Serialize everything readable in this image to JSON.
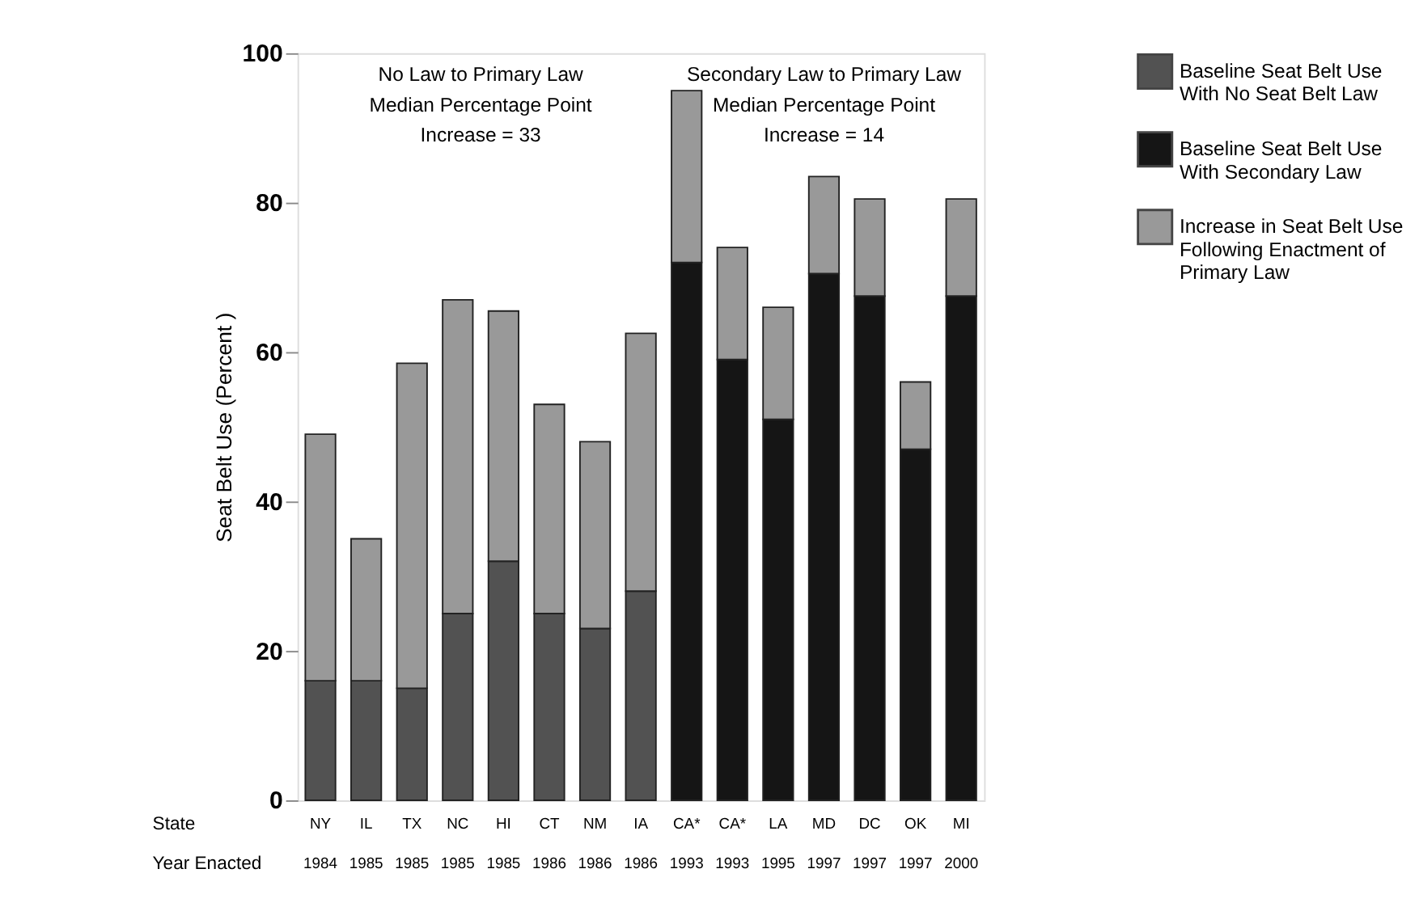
{
  "chart_data": {
    "type": "bar",
    "stacked": true,
    "ylabel": "Seat Belt Use (Percent )",
    "categories": [
      "NY\n1984",
      "IL\n1985",
      "TX\n1985",
      "NC\n1985",
      "HI\n1985",
      "CT\n1986",
      "NM\n1986",
      "IA\n1986",
      "CA*\n1993",
      "CA*\n1993",
      "LA\n1995",
      "MD\n1997",
      "DC\n1997",
      "OK\n1997",
      "MI\n2000"
    ],
    "series": [
      {
        "name": "Baseline Seat Belt Use With No Seat Belt Law",
        "color": "#525252",
        "values": [
          16,
          16,
          15,
          25,
          32,
          25,
          23,
          28,
          null,
          null,
          null,
          null,
          null,
          null,
          null
        ]
      },
      {
        "name": "Baseline Seat Belt Use With Secondary Law",
        "color": "#151515",
        "values": [
          null,
          null,
          null,
          null,
          null,
          null,
          null,
          null,
          72,
          59,
          51,
          70.5,
          67.5,
          47,
          67.5
        ]
      },
      {
        "name": "Increase in Seat Belt Use Following Enactment of Primary Law",
        "color": "#999999",
        "values": [
          33,
          19,
          43.5,
          42,
          33.5,
          28,
          25,
          34.5,
          23,
          15,
          15,
          13,
          13,
          9,
          13
        ]
      }
    ],
    "ylim": [
      0,
      100
    ],
    "yticks": [
      0,
      20,
      40,
      60,
      80,
      100
    ],
    "grid": false,
    "legend": "right",
    "annotations": [
      "No Law to Primary Law\nMedian Percentage Point\nIncrease = 33",
      "Secondary Law to Primary Law\nMedian Percentage Point\nIncrease = 14",
      "State",
      "Year Enacted"
    ]
  }
}
